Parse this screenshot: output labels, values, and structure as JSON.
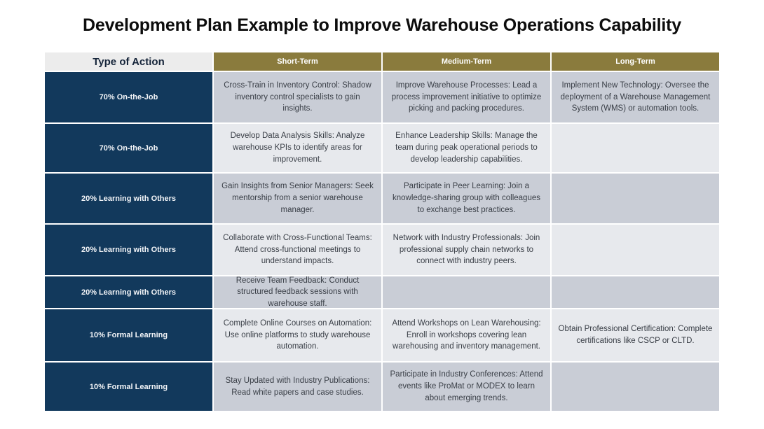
{
  "page": {
    "title": "Development Plan Example to Improve Warehouse Operations Capability"
  },
  "colors": {
    "navy_label": "#12395c",
    "gold_header": "#8a7b3d",
    "row_dark": "#c9cdd6",
    "row_light": "#e7e9ed",
    "action_header_bg": "#ececec"
  },
  "table": {
    "columns": [
      "Type of Action",
      "Short-Term",
      "Medium-Term",
      "Long-Term"
    ],
    "rows": [
      {
        "label": "70% On-the-Job",
        "short": "Cross-Train in Inventory Control: Shadow inventory control specialists to gain insights.",
        "medium": "Improve Warehouse Processes: Lead a process improvement initiative to optimize picking and packing procedures.",
        "long": "Implement New Technology: Oversee the deployment of a Warehouse Management System (WMS) or automation tools."
      },
      {
        "label": "70% On-the-Job",
        "short": "Develop Data Analysis Skills: Analyze warehouse KPIs to identify areas for improvement.",
        "medium": "Enhance Leadership Skills: Manage the team during peak operational periods to develop leadership capabilities.",
        "long": ""
      },
      {
        "label": "20% Learning with Others",
        "short": "Gain Insights from Senior Managers: Seek mentorship from a senior warehouse manager.",
        "medium": "Participate in Peer Learning: Join a knowledge-sharing group with colleagues to exchange best practices.",
        "long": ""
      },
      {
        "label": "20% Learning with Others",
        "short": "Collaborate with Cross-Functional Teams: Attend cross-functional meetings to understand impacts.",
        "medium": "Network with Industry Professionals: Join professional supply chain networks to connect with industry peers.",
        "long": ""
      },
      {
        "label": "20% Learning with Others",
        "short": "Receive Team Feedback: Conduct structured feedback sessions with warehouse staff.",
        "medium": "",
        "long": ""
      },
      {
        "label": "10% Formal Learning",
        "short": "Complete Online Courses on Automation: Use online platforms to study warehouse automation.",
        "medium": "Attend Workshops on Lean Warehousing: Enroll in workshops covering lean warehousing and inventory management.",
        "long": "Obtain Professional Certification: Complete certifications like CSCP or CLTD."
      },
      {
        "label": "10% Formal Learning",
        "short": "Stay Updated with Industry Publications: Read white papers and case studies.",
        "medium": "Participate in Industry Conferences: Attend events like ProMat or MODEX to learn about emerging trends.",
        "long": ""
      }
    ]
  }
}
